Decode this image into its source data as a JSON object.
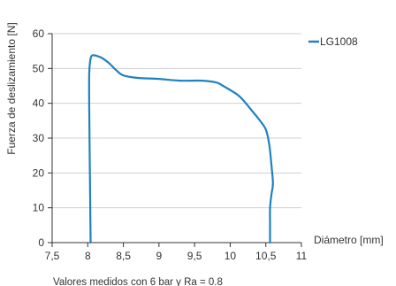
{
  "chart_data": {
    "type": "line",
    "title": "",
    "xlabel": "Diámetro [mm]",
    "ylabel": "Fuerza de deslizamiento [N]",
    "caption": "Valores medidos con 6 bar y Ra = 0.8",
    "xlim": [
      7.5,
      11
    ],
    "ylim": [
      0,
      60
    ],
    "xticks": [
      7.5,
      8,
      8.5,
      9,
      9.5,
      10,
      10.5,
      11
    ],
    "xtick_labels": [
      "7,5",
      "8",
      "8,5",
      "9",
      "9,5",
      "10",
      "10,5",
      "11"
    ],
    "yticks": [
      0,
      10,
      20,
      30,
      40,
      50,
      60
    ],
    "ytick_labels": [
      "0",
      "10",
      "20",
      "30",
      "40",
      "50",
      "60"
    ],
    "grid": "horizontal",
    "legend": "top-right",
    "series": [
      {
        "name": "LG1008",
        "color": "#1f82c0",
        "x": [
          8.04,
          8.03,
          8.02,
          8.02,
          8.03,
          8.05,
          8.08,
          8.13,
          8.2,
          8.3,
          8.4,
          8.5,
          8.7,
          9.0,
          9.3,
          9.6,
          9.8,
          9.9,
          10.1,
          10.2,
          10.3,
          10.4,
          10.5,
          10.55,
          10.58,
          10.6,
          10.58,
          10.56,
          10.56,
          10.56
        ],
        "y": [
          0,
          20,
          40,
          48,
          51.5,
          53.5,
          53.8,
          53.6,
          53.0,
          51.5,
          49.5,
          48.0,
          47.3,
          47.0,
          46.5,
          46.5,
          46.0,
          45.0,
          42.5,
          40.5,
          38.0,
          35.5,
          32.5,
          28.0,
          22.0,
          17.0,
          14.0,
          10.0,
          5.0,
          0
        ]
      }
    ]
  }
}
